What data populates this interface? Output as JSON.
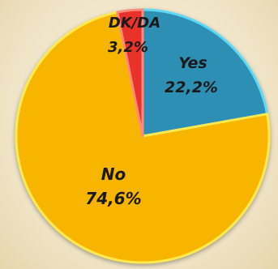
{
  "chart_data": {
    "type": "pie",
    "title": "",
    "slices": [
      {
        "label": "Yes",
        "value": 22.2,
        "display": "22,2%",
        "color": "#2e8fb5",
        "edge": "#5fd8f5"
      },
      {
        "label": "No",
        "value": 74.6,
        "display": "74,6%",
        "color": "#f7b500",
        "edge": "#ffe94d"
      },
      {
        "label": "DK/DA",
        "value": 3.2,
        "display": "3,2%",
        "color": "#e8302c",
        "edge": "#ff8a7a"
      }
    ],
    "start_angle_deg": 0,
    "direction": "clockwise",
    "legend": "none"
  }
}
